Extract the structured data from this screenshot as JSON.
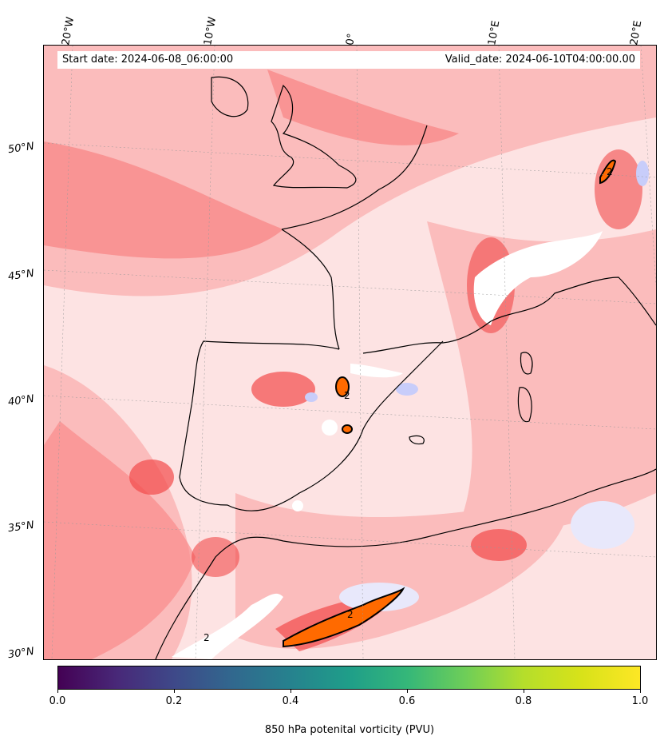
{
  "header": {
    "start_date": "Start date: 2024-06-08_06:00:00",
    "valid_date": "Valid_date: 2024-06-10T04:00:00.00"
  },
  "map": {
    "lon_labels": [
      "20°W",
      "10°W",
      "0°",
      "10°E",
      "20°E"
    ],
    "lat_labels": [
      "50°N",
      "45°N",
      "40°N",
      "35°N",
      "30°N"
    ],
    "contour_label": "2",
    "colors": {
      "background_pink": "#fde3e3",
      "light_red": "#fbbcbc",
      "mid_red": "#f98a8a",
      "strong_red": "#f24a4a",
      "contour_fill": "#ff6a00",
      "coast": "#000000",
      "blue_patch": "#c8cdfa"
    }
  },
  "colorbar": {
    "ticks": [
      "0.0",
      "0.2",
      "0.4",
      "0.6",
      "0.8",
      "1.0"
    ],
    "title": "850 hPa potenital vorticity (PVU)",
    "colormap": "viridis"
  }
}
